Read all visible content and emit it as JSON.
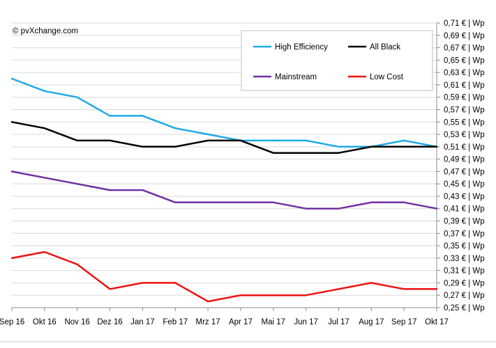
{
  "chart_data": {
    "type": "line",
    "copyright": "© pvXchange.com",
    "categories": [
      "Sep 16",
      "Okt 16",
      "Nov 16",
      "Dez 16",
      "Jan 17",
      "Feb 17",
      "Mrz 17",
      "Apr 17",
      "Mai 17",
      "Jun 17",
      "Jul 17",
      "Aug 17",
      "Sep 17",
      "Okt 17"
    ],
    "ylim": [
      0.25,
      0.71
    ],
    "y_ticks": [
      0.71,
      0.69,
      0.67,
      0.65,
      0.63,
      0.61,
      0.59,
      0.57,
      0.55,
      0.53,
      0.51,
      0.49,
      0.47,
      0.45,
      0.43,
      0.41,
      0.39,
      0.37,
      0.35,
      0.33,
      0.31,
      0.29,
      0.27,
      0.25
    ],
    "y_tick_labels": [
      "0,71 € | Wp",
      "0,69 € | Wp",
      "0,67 € | Wp",
      "0,65 € | Wp",
      "0,63 € | Wp",
      "0,61 € | Wp",
      "0,59 € | Wp",
      "0,57 € | Wp",
      "0,55 € | Wp",
      "0,53 € | Wp",
      "0,51 € | Wp",
      "0,49 € | Wp",
      "0,47 € | Wp",
      "0,45 € | Wp",
      "0,43 € | Wp",
      "0,41 € | Wp",
      "0,39 € | Wp",
      "0,37 € | Wp",
      "0,35 € | Wp",
      "0,33 € | Wp",
      "0,31 € | Wp",
      "0,29 € | Wp",
      "0,27 € | Wp",
      "0,25 € | Wp"
    ],
    "grid": true,
    "legend_position": "top-right",
    "series": [
      {
        "name": "High Efficiency",
        "color": "#1eaae6",
        "values": [
          0.62,
          0.6,
          0.59,
          0.56,
          0.56,
          0.54,
          0.53,
          0.52,
          0.52,
          0.52,
          0.51,
          0.51,
          0.52,
          0.51
        ]
      },
      {
        "name": "All Black",
        "color": "#000000",
        "values": [
          0.55,
          0.54,
          0.52,
          0.52,
          0.51,
          0.51,
          0.52,
          0.52,
          0.5,
          0.5,
          0.5,
          0.51,
          0.51,
          0.51
        ]
      },
      {
        "name": "Mainstream",
        "color": "#7030a0",
        "values": [
          0.47,
          0.46,
          0.45,
          0.44,
          0.44,
          0.42,
          0.42,
          0.42,
          0.42,
          0.41,
          0.41,
          0.42,
          0.42,
          0.41
        ]
      },
      {
        "name": "Low Cost",
        "color": "#ee1111",
        "values": [
          0.33,
          0.34,
          0.32,
          0.28,
          0.29,
          0.29,
          0.26,
          0.27,
          0.27,
          0.27,
          0.28,
          0.29,
          0.28,
          0.28
        ]
      }
    ]
  }
}
